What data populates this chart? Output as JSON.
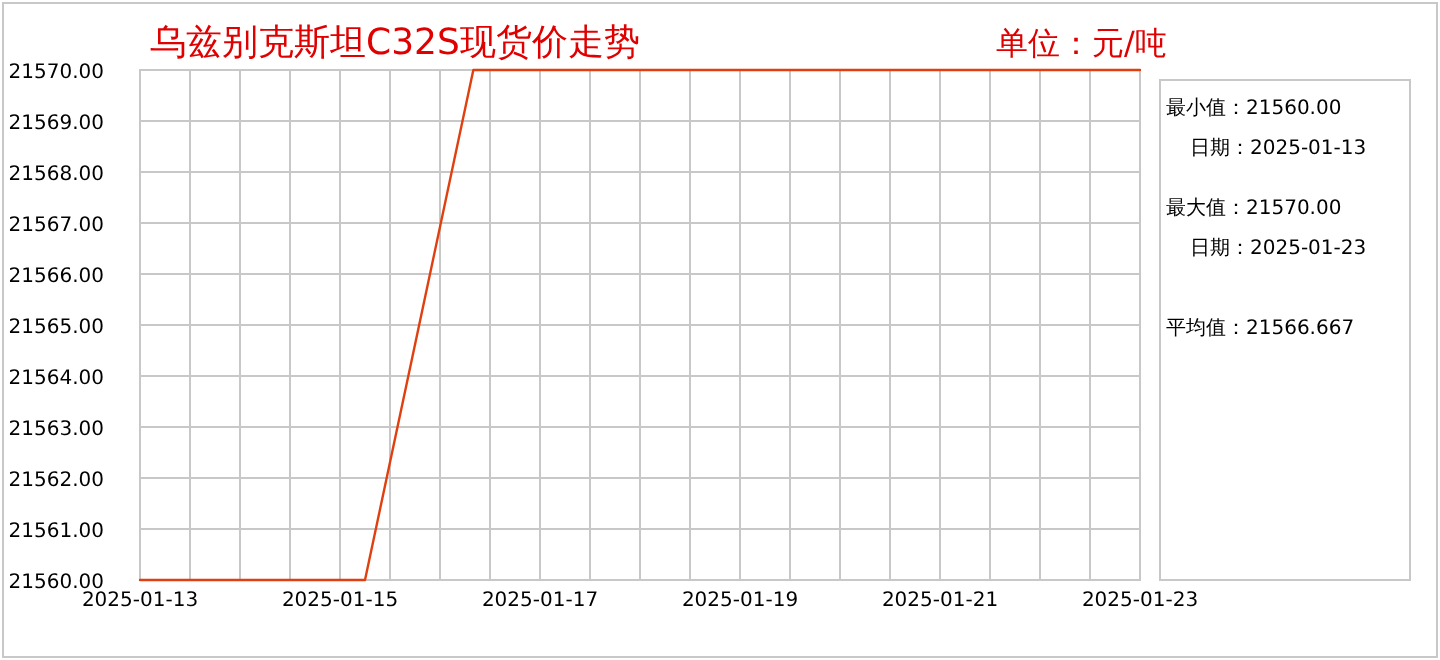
{
  "chart_data": {
    "type": "line",
    "title": "乌兹别克斯坦C32S现货价走势",
    "subtitle": "单位：元/吨",
    "series": [
      {
        "color": "#e0400f",
        "x": [
          "2025-01-13",
          "2025-01-15T06:00",
          "2025-01-16T08:00",
          "2025-01-23"
        ],
        "values": [
          21560,
          21560,
          21570,
          21570
        ]
      }
    ],
    "xlim": [
      "2025-01-13",
      "2025-01-23"
    ],
    "xticks": [
      {
        "value": "2025-01-13",
        "label": "2025-01-13"
      },
      {
        "value": "2025-01-13T12:00",
        "label": null
      },
      {
        "value": "2025-01-14",
        "label": null
      },
      {
        "value": "2025-01-14T12:00",
        "label": null
      },
      {
        "value": "2025-01-15",
        "label": "2025-01-15"
      },
      {
        "value": "2025-01-15T12:00",
        "label": null
      },
      {
        "value": "2025-01-16",
        "label": null
      },
      {
        "value": "2025-01-16T12:00",
        "label": null
      },
      {
        "value": "2025-01-17",
        "label": "2025-01-17"
      },
      {
        "value": "2025-01-17T12:00",
        "label": null
      },
      {
        "value": "2025-01-18",
        "label": null
      },
      {
        "value": "2025-01-18T12:00",
        "label": null
      },
      {
        "value": "2025-01-19",
        "label": "2025-01-19"
      },
      {
        "value": "2025-01-19T12:00",
        "label": null
      },
      {
        "value": "2025-01-20",
        "label": null
      },
      {
        "value": "2025-01-20T12:00",
        "label": null
      },
      {
        "value": "2025-01-21",
        "label": "2025-01-21"
      },
      {
        "value": "2025-01-21T12:00",
        "label": null
      },
      {
        "value": "2025-01-22",
        "label": null
      },
      {
        "value": "2025-01-22T12:00",
        "label": null
      },
      {
        "value": "2025-01-23",
        "label": "2025-01-23"
      }
    ],
    "ylim": [
      21560,
      21570
    ],
    "yticks": [
      {
        "value": 21560,
        "label": "21560.00"
      },
      {
        "value": 21561,
        "label": "21561.00"
      },
      {
        "value": 21562,
        "label": "21562.00"
      },
      {
        "value": 21563,
        "label": "21563.00"
      },
      {
        "value": 21564,
        "label": "21564.00"
      },
      {
        "value": 21565,
        "label": "21565.00"
      },
      {
        "value": 21566,
        "label": "21566.00"
      },
      {
        "value": 21567,
        "label": "21567.00"
      },
      {
        "value": 21568,
        "label": "21568.00"
      },
      {
        "value": 21569,
        "label": "21569.00"
      },
      {
        "value": 21570,
        "label": "21570.00"
      }
    ],
    "grid": true,
    "marker": "none",
    "line_style": "solid",
    "annotations": [
      "最小值：21560.00",
      "日期：2025-01-13",
      "最大值：21570.00",
      "日期：2025-01-23",
      "平均值：21566.667"
    ]
  }
}
